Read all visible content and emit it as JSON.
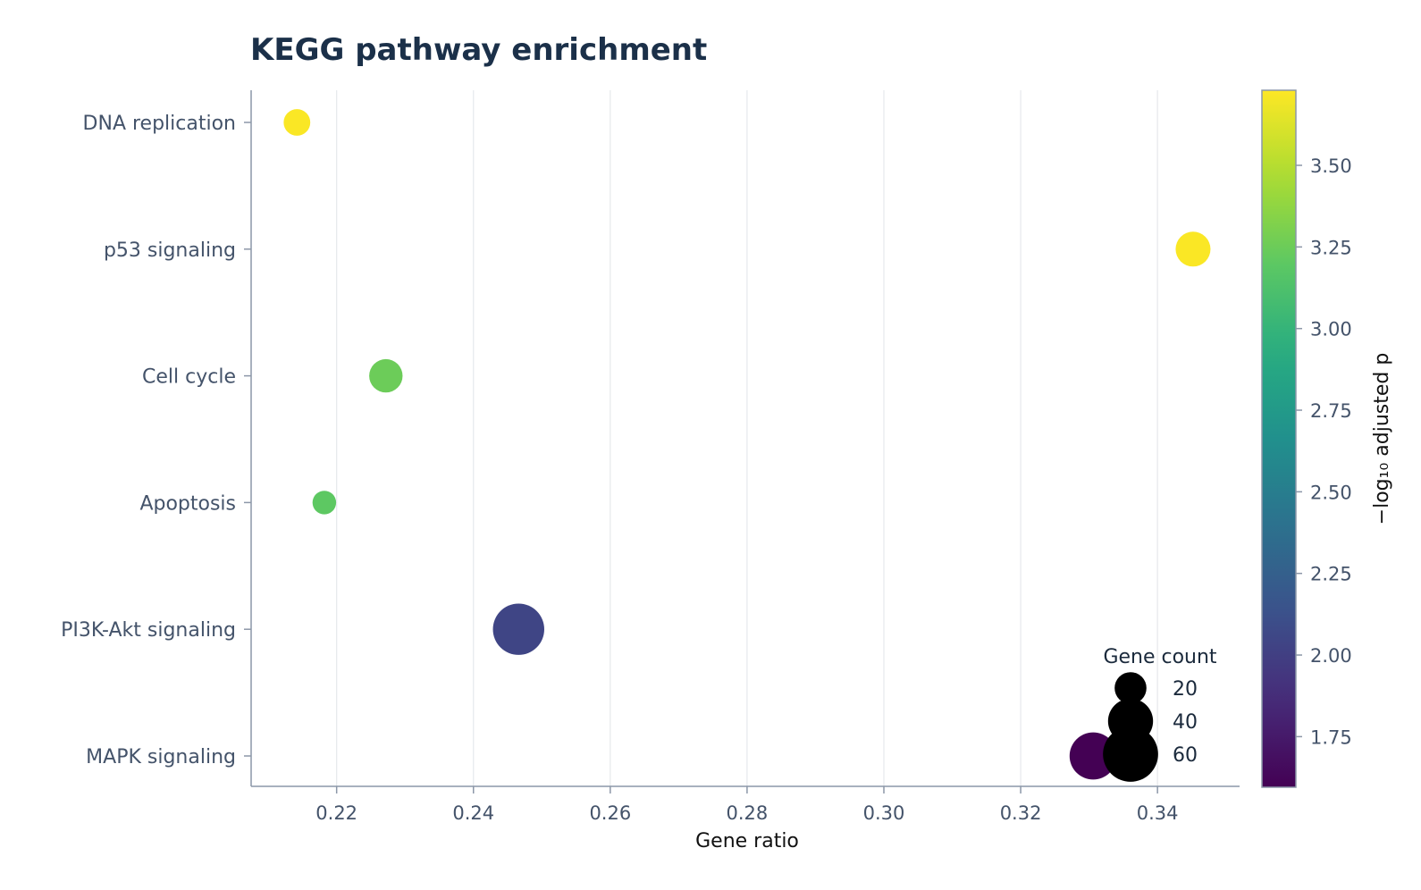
{
  "chart_data": {
    "type": "scatter",
    "title": "KEGG pathway enrichment",
    "xlabel": "Gene ratio",
    "ylabel": "",
    "xlim": [
      0.2075,
      0.352
    ],
    "x_ticks": [
      0.22,
      0.24,
      0.26,
      0.28,
      0.3,
      0.32,
      0.34
    ],
    "x_tick_labels": [
      "0.22",
      "0.24",
      "0.26",
      "0.28",
      "0.30",
      "0.32",
      "0.34"
    ],
    "categories": [
      "DNA replication",
      "p53 signaling",
      "Cell cycle",
      "Apoptosis",
      "PI3K-Akt signaling",
      "MAPK signaling"
    ],
    "grid": "x-only",
    "points": [
      {
        "category": "DNA replication",
        "x": 0.2142,
        "count": 14,
        "neg_log10_padj": 3.72
      },
      {
        "category": "p53 signaling",
        "x": 0.3452,
        "count": 24,
        "neg_log10_padj": 3.72
      },
      {
        "category": "Cell cycle",
        "x": 0.2272,
        "count": 22,
        "neg_log10_padj": 3.25
      },
      {
        "category": "Apoptosis",
        "x": 0.2182,
        "count": 11,
        "neg_log10_padj": 3.2
      },
      {
        "category": "PI3K-Akt signaling",
        "x": 0.2466,
        "count": 52,
        "neg_log10_padj": 2.04
      },
      {
        "category": "MAPK signaling",
        "x": 0.3306,
        "count": 44,
        "neg_log10_padj": 1.59
      }
    ],
    "colorbar": {
      "label": "−log₁₀ adjusted p",
      "colormap": "viridis",
      "range": [
        1.595,
        3.73
      ],
      "ticks": [
        1.75,
        2.0,
        2.25,
        2.5,
        2.75,
        3.0,
        3.25,
        3.5
      ],
      "tick_labels": [
        "1.75",
        "2.00",
        "2.25",
        "2.50",
        "2.75",
        "3.00",
        "3.25",
        "3.50"
      ]
    },
    "size_legend": {
      "title": "Gene count",
      "placement": "lower-right",
      "entries": [
        {
          "label": "20",
          "count": 20
        },
        {
          "label": "40",
          "count": 40
        },
        {
          "label": "60",
          "count": 60
        }
      ]
    },
    "colors": {
      "title": "#1b3049",
      "tick_label": "#44536a",
      "axis": "#8c97a8",
      "grid": "#e5e8ec",
      "legend_text": "#1b2a3c",
      "legend_marker": "#000000"
    }
  }
}
